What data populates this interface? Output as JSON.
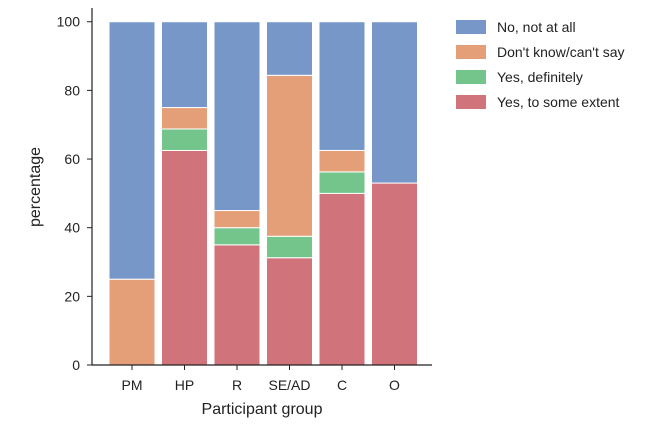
{
  "chart_data": {
    "type": "bar",
    "stacked": true,
    "title": "",
    "xlabel": "Participant group",
    "ylabel": "percentage",
    "ylim": [
      0,
      100
    ],
    "yticks": [
      0,
      20,
      40,
      60,
      80,
      100
    ],
    "categories": [
      "PM",
      "HP",
      "R",
      "SE/AD",
      "C",
      "O"
    ],
    "series": [
      {
        "name": "Yes, to some extent",
        "color": "#d1737a",
        "values": [
          0,
          62.5,
          35,
          31.25,
          50,
          53
        ]
      },
      {
        "name": "Yes, definitely",
        "color": "#73c58b",
        "values": [
          0,
          6.25,
          5,
          6.25,
          6.25,
          0
        ]
      },
      {
        "name": "Don't know/can't say",
        "color": "#e59f78",
        "values": [
          25,
          6.25,
          5,
          46.9,
          6.25,
          0
        ]
      },
      {
        "name": "No, not at all",
        "color": "#7697c7",
        "values": [
          75,
          25,
          55,
          15.6,
          37.5,
          47
        ]
      }
    ],
    "legend_order": [
      "No, not at all",
      "Don't know/can't say",
      "Yes, definitely",
      "Yes, to some extent"
    ],
    "legend_position": "right",
    "grid": false
  }
}
